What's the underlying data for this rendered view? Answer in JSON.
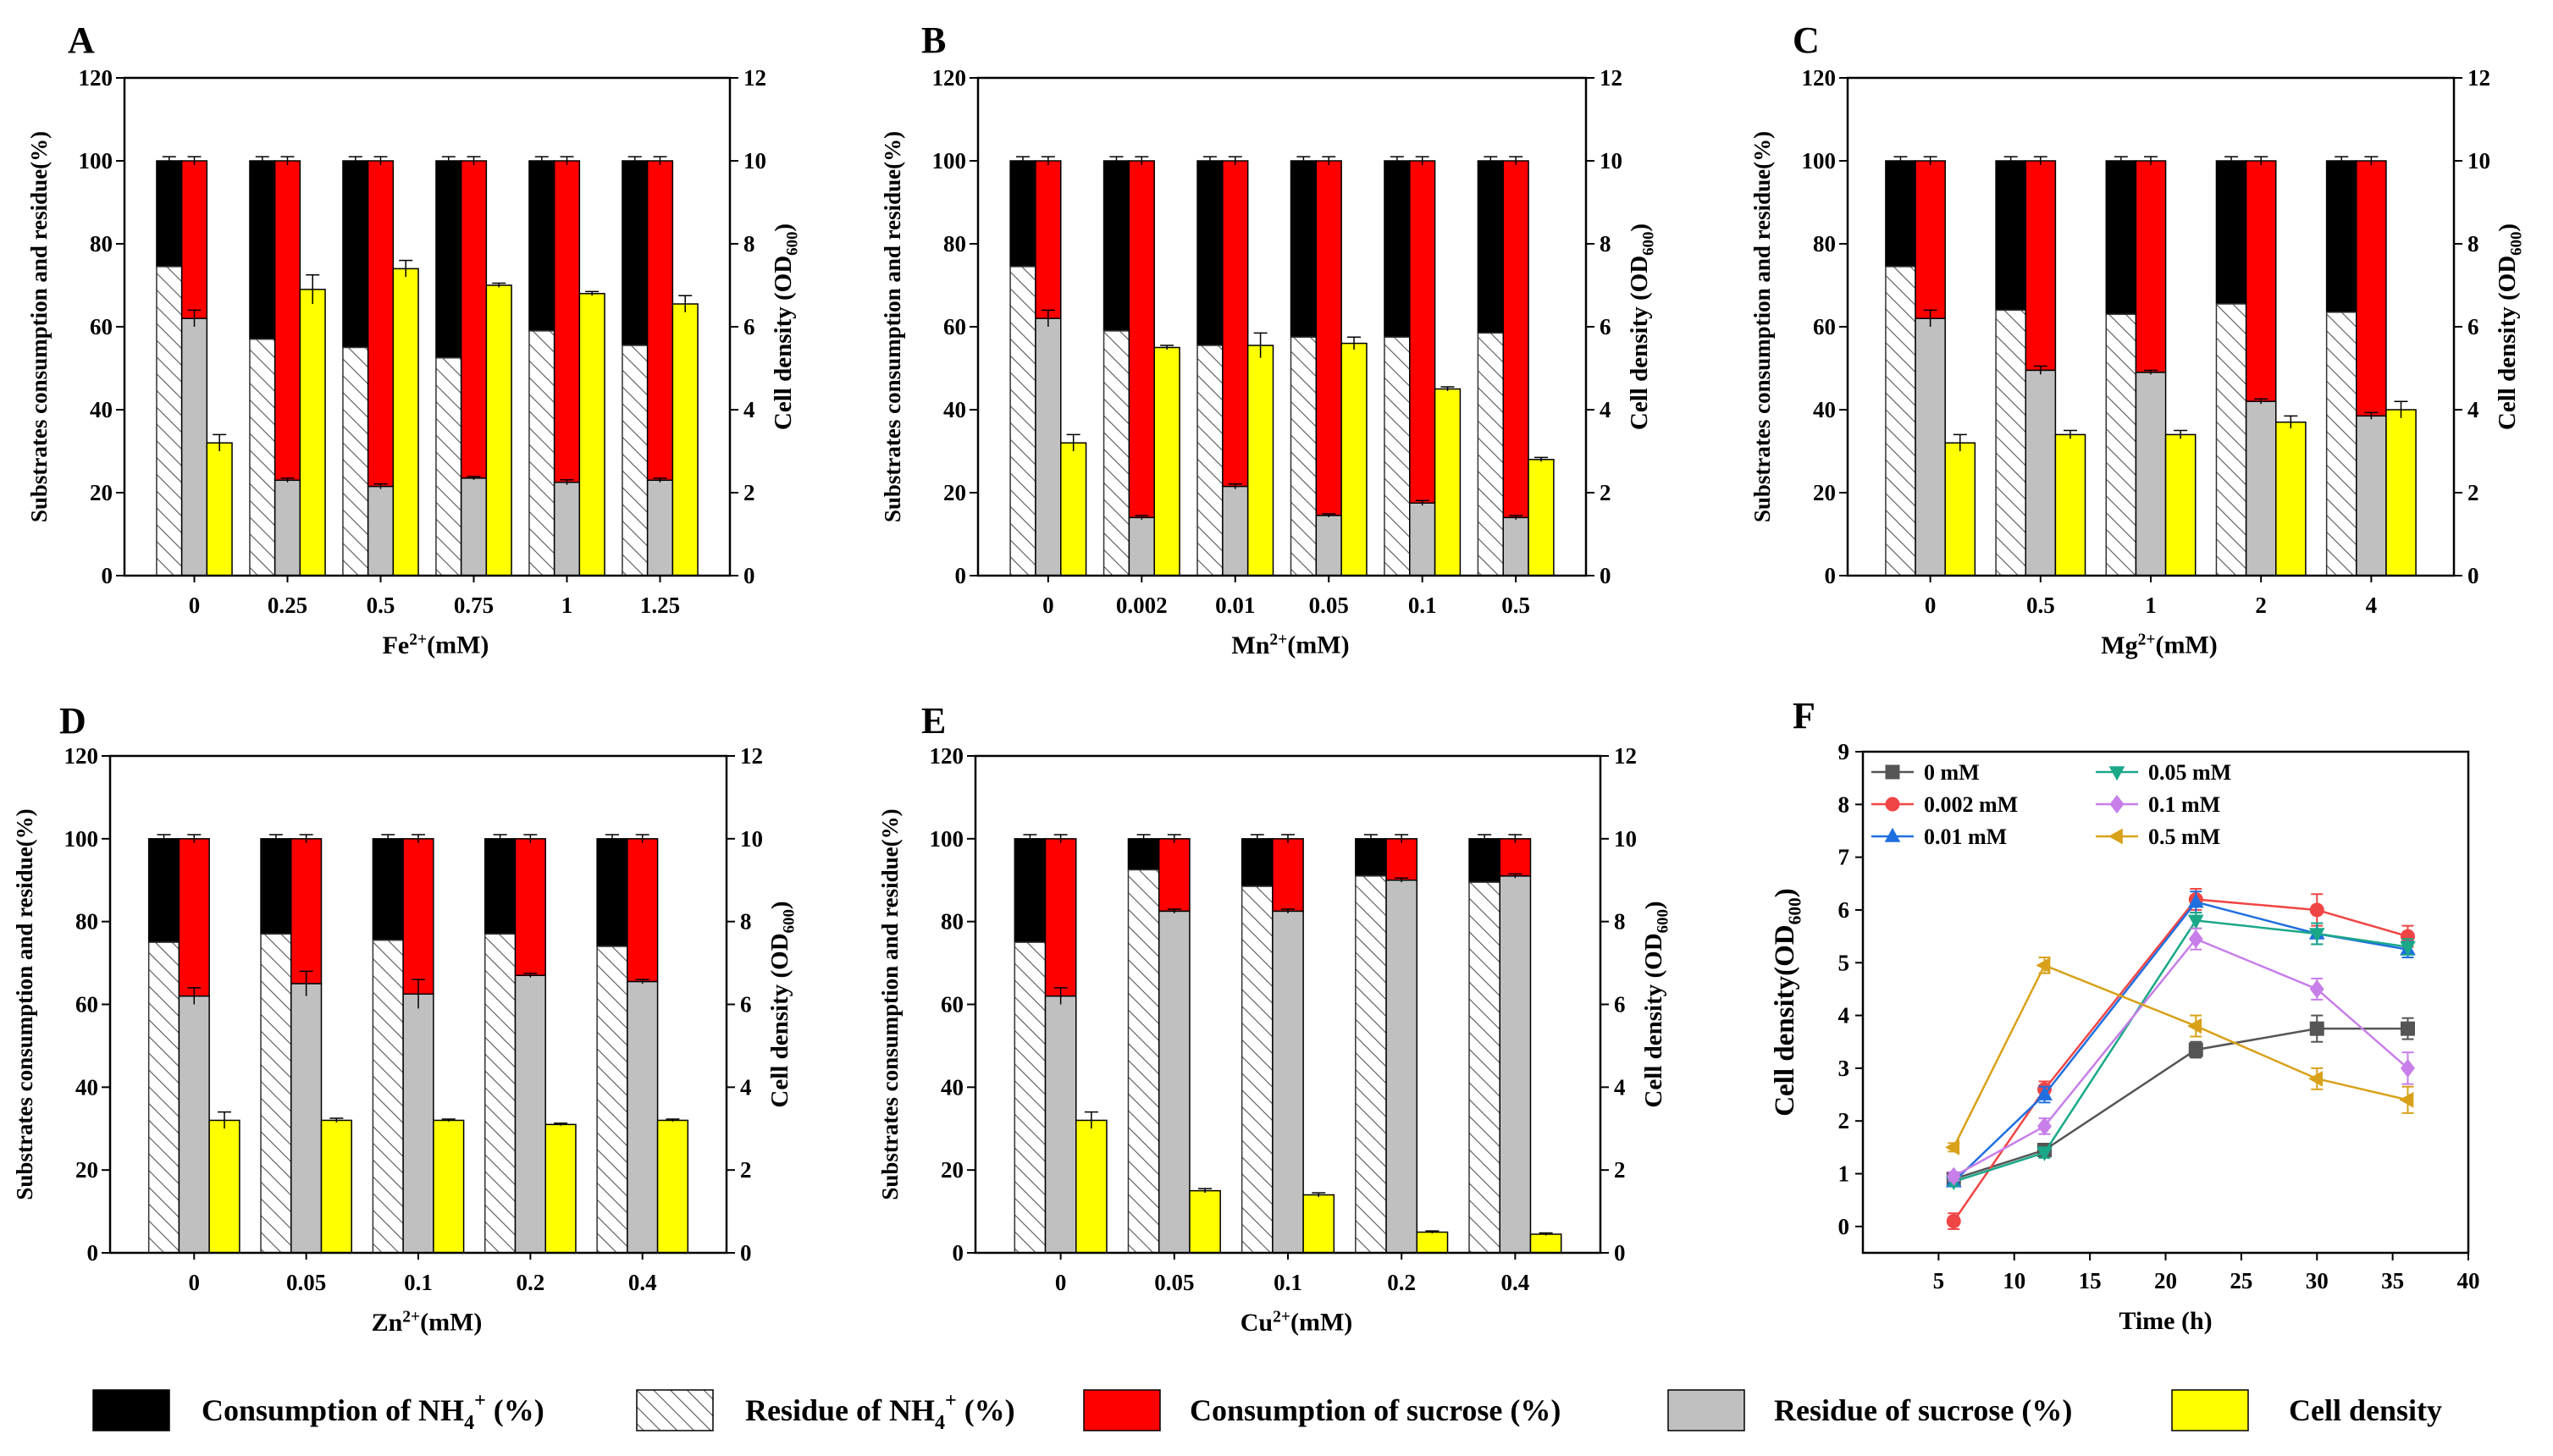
{
  "chart_data": [
    {
      "panel": "A",
      "type": "bar",
      "categories": [
        "0",
        "0.25",
        "0.5",
        "0.75",
        "1",
        "1.25"
      ],
      "xlabel": {
        "base": "Fe",
        "sup": "2+",
        "unit": "(mM)"
      },
      "ylabel_left": "Substrates consumption and residue(%)",
      "ylabel_right": {
        "base": "Cell density (OD",
        "sub": "600",
        "close": ")"
      },
      "ylim_left": [
        0,
        120
      ],
      "yticks_left": [
        0,
        20,
        40,
        60,
        80,
        100,
        120
      ],
      "ylim_right": [
        0,
        12
      ],
      "yticks_right": [
        0,
        2,
        4,
        6,
        8,
        10,
        12
      ],
      "nh4_residue": [
        74.5,
        57,
        55,
        52.5,
        59,
        55.5
      ],
      "sucrose_residue": [
        62,
        23,
        21.5,
        23.5,
        22.5,
        23
      ],
      "sucrose_residue_err": [
        2,
        0.5,
        0.6,
        0.4,
        0.6,
        0.5
      ],
      "cell_density": [
        3.2,
        6.9,
        7.4,
        7.0,
        6.8,
        6.55
      ],
      "cell_density_err": [
        0.2,
        0.35,
        0.2,
        0.05,
        0.05,
        0.2
      ]
    },
    {
      "panel": "B",
      "type": "bar",
      "categories": [
        "0",
        "0.002",
        "0.01",
        "0.05",
        "0.1",
        "0.5"
      ],
      "xlabel": {
        "base": "Mn",
        "sup": "2+",
        "unit": "(mM)"
      },
      "ylabel_left": "Substrates consumption and residue(%)",
      "ylabel_right": {
        "base": "Cell density (OD",
        "sub": "600",
        "close": ")"
      },
      "ylim_left": [
        0,
        120
      ],
      "yticks_left": [
        0,
        20,
        40,
        60,
        80,
        100,
        120
      ],
      "ylim_right": [
        0,
        12
      ],
      "yticks_right": [
        0,
        2,
        4,
        6,
        8,
        10,
        12
      ],
      "nh4_residue": [
        74.5,
        59,
        55.5,
        57.5,
        57.5,
        58.5
      ],
      "sucrose_residue": [
        62,
        14,
        21.5,
        14.5,
        17.5,
        14
      ],
      "sucrose_residue_err": [
        2,
        0.5,
        0.6,
        0.4,
        0.6,
        0.5
      ],
      "cell_density": [
        3.2,
        5.5,
        5.55,
        5.6,
        4.5,
        2.8
      ],
      "cell_density_err": [
        0.2,
        0.05,
        0.3,
        0.15,
        0.05,
        0.05
      ]
    },
    {
      "panel": "C",
      "type": "bar",
      "categories": [
        "0",
        "0.5",
        "1",
        "2",
        "4"
      ],
      "xlabel": {
        "base": "Mg",
        "sup": "2+",
        "unit": "(mM)"
      },
      "ylabel_left": "Substrates consumption and residue(%)",
      "ylabel_right": {
        "base": "Cell density (OD",
        "sub": "600",
        "close": ")"
      },
      "ylim_left": [
        0,
        120
      ],
      "yticks_left": [
        0,
        20,
        40,
        60,
        80,
        100,
        120
      ],
      "ylim_right": [
        0,
        12
      ],
      "yticks_right": [
        0,
        2,
        4,
        6,
        8,
        10,
        12
      ],
      "nh4_residue": [
        74.5,
        64,
        63,
        65.5,
        63.5
      ],
      "sucrose_residue": [
        62,
        49.5,
        49,
        42,
        38.5
      ],
      "sucrose_residue_err": [
        2,
        1,
        0.5,
        0.6,
        0.8
      ],
      "cell_density": [
        3.2,
        3.4,
        3.4,
        3.7,
        4.0
      ],
      "cell_density_err": [
        0.2,
        0.1,
        0.1,
        0.15,
        0.2
      ]
    },
    {
      "panel": "D",
      "type": "bar",
      "categories": [
        "0",
        "0.05",
        "0.1",
        "0.2",
        "0.4"
      ],
      "xlabel": {
        "base": "Zn",
        "sup": "2+",
        "unit": "(mM)"
      },
      "ylabel_left": "Substrates consumption and residue(%)",
      "ylabel_right": {
        "base": "Cell density (OD",
        "sub": "600",
        "close": ")"
      },
      "ylim_left": [
        0,
        120
      ],
      "yticks_left": [
        0,
        20,
        40,
        60,
        80,
        100,
        120
      ],
      "ylim_right": [
        0,
        12
      ],
      "yticks_right": [
        0,
        2,
        4,
        6,
        8,
        10,
        12
      ],
      "nh4_residue": [
        75,
        77,
        75.5,
        77,
        74
      ],
      "sucrose_residue": [
        62,
        65,
        62.5,
        67,
        65.5
      ],
      "sucrose_residue_err": [
        2,
        3,
        3.5,
        0.5,
        0.5
      ],
      "cell_density": [
        3.2,
        3.2,
        3.2,
        3.1,
        3.2
      ],
      "cell_density_err": [
        0.2,
        0.05,
        0.03,
        0.03,
        0.03
      ]
    },
    {
      "panel": "E",
      "type": "bar",
      "categories": [
        "0",
        "0.05",
        "0.1",
        "0.2",
        "0.4"
      ],
      "xlabel": {
        "base": "Cu",
        "sup": "2+",
        "unit": "(mM)"
      },
      "ylabel_left": "Substrates consumption and residue(%)",
      "ylabel_right": {
        "base": "Cell density (OD",
        "sub": "600",
        "close": ")"
      },
      "ylim_left": [
        0,
        120
      ],
      "yticks_left": [
        0,
        20,
        40,
        60,
        80,
        100,
        120
      ],
      "ylim_right": [
        0,
        12
      ],
      "yticks_right": [
        0,
        2,
        4,
        6,
        8,
        10,
        12
      ],
      "nh4_residue": [
        75,
        92.5,
        88.5,
        91,
        89.5
      ],
      "sucrose_residue": [
        62,
        82.5,
        82.5,
        90,
        91
      ],
      "sucrose_residue_err": [
        2,
        0.5,
        0.5,
        0.5,
        0.5
      ],
      "cell_density": [
        3.2,
        1.5,
        1.4,
        0.5,
        0.45
      ],
      "cell_density_err": [
        0.2,
        0.05,
        0.05,
        0.03,
        0.03
      ]
    },
    {
      "panel": "F",
      "type": "line",
      "xlabel": "Time (h)",
      "ylabel": {
        "base": "Cell density(OD",
        "sub": "600",
        "close": ")"
      },
      "xlim": [
        0,
        40
      ],
      "xticks": [
        5,
        10,
        15,
        20,
        25,
        30,
        35,
        40
      ],
      "ylim": [
        -0.5,
        9
      ],
      "yticks": [
        0,
        1,
        2,
        3,
        4,
        5,
        6,
        7,
        8,
        9
      ],
      "x": [
        6,
        12,
        22,
        30,
        36
      ],
      "series": [
        {
          "name": "0 mM",
          "color": "#555555",
          "marker": "square",
          "values": [
            0.9,
            1.45,
            3.35,
            3.75,
            3.75
          ],
          "err": [
            0.08,
            0.1,
            0.15,
            0.25,
            0.2
          ]
        },
        {
          "name": "0.002 mM",
          "color": "#f04545",
          "marker": "circle",
          "values": [
            0.1,
            2.6,
            6.2,
            6.0,
            5.5
          ],
          "err": [
            0.15,
            0.15,
            0.2,
            0.3,
            0.2
          ]
        },
        {
          "name": "0.01 mM",
          "color": "#1f6fe0",
          "marker": "triangle-up",
          "values": [
            0.85,
            2.5,
            6.15,
            5.55,
            5.25
          ],
          "err": [
            0.08,
            0.15,
            0.2,
            0.2,
            0.15
          ]
        },
        {
          "name": "0.05 mM",
          "color": "#1aa889",
          "marker": "triangle-down",
          "values": [
            0.85,
            1.4,
            5.8,
            5.55,
            5.3
          ],
          "err": [
            0.08,
            0.1,
            0.15,
            0.2,
            0.15
          ]
        },
        {
          "name": "0.1 mM",
          "color": "#c77ee8",
          "marker": "diamond",
          "values": [
            0.95,
            1.9,
            5.45,
            4.5,
            3.0
          ],
          "err": [
            0.08,
            0.15,
            0.2,
            0.2,
            0.3
          ]
        },
        {
          "name": "0.5 mM",
          "color": "#d9a11a",
          "marker": "triangle-left",
          "values": [
            1.5,
            4.95,
            3.8,
            2.8,
            2.4
          ],
          "err": [
            0.08,
            0.15,
            0.2,
            0.2,
            0.25
          ]
        }
      ]
    }
  ],
  "legend": [
    {
      "key": "nh4_consumption",
      "label_pre": "Consumption of NH",
      "sub": "4",
      "sup": "+",
      "label_post": " (%)",
      "color": "#000000"
    },
    {
      "key": "nh4_residue",
      "label_pre": "Residue of NH",
      "sub": "4",
      "sup": "+",
      "label_post": " (%)",
      "color": "#ffffff",
      "pattern": "hatch"
    },
    {
      "key": "sucrose_consumption",
      "label_pre": "Consumption of sucrose (%)",
      "color": "#ff0000"
    },
    {
      "key": "sucrose_residue",
      "label_pre": "Residue of sucrose (%)",
      "color": "#c0c0c0"
    },
    {
      "key": "cell_density",
      "label_pre": "Cell density",
      "color": "#ffff00"
    }
  ]
}
